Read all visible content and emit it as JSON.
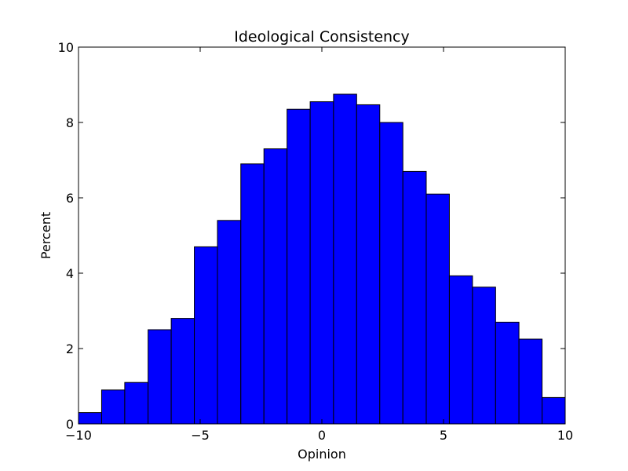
{
  "chart_data": {
    "type": "bar",
    "title": "Ideological Consistency",
    "xlabel": "Opinion",
    "ylabel": "Percent",
    "xlim": [
      -10,
      10
    ],
    "ylim": [
      0,
      10
    ],
    "x_ticks": [
      -10,
      -5,
      0,
      5,
      10
    ],
    "x_tick_labels": [
      "−10",
      "−5",
      "0",
      "5",
      "10"
    ],
    "y_ticks": [
      0,
      2,
      4,
      6,
      8,
      10
    ],
    "y_tick_labels": [
      "0",
      "2",
      "4",
      "6",
      "8",
      "10"
    ],
    "bin_edges": [
      -10,
      -9.05,
      -8.1,
      -7.14,
      -6.19,
      -5.24,
      -4.29,
      -3.33,
      -2.38,
      -1.43,
      -0.48,
      0.48,
      1.43,
      2.38,
      3.33,
      4.29,
      5.24,
      6.19,
      7.14,
      8.1,
      9.05,
      10
    ],
    "values": [
      0.3,
      0.9,
      1.1,
      2.5,
      2.8,
      4.7,
      5.4,
      6.9,
      7.3,
      8.35,
      8.55,
      8.75,
      8.47,
      8.0,
      6.7,
      6.1,
      3.93,
      3.63,
      2.7,
      2.25,
      0.7
    ],
    "bar_color": "#0000ff",
    "edge_color": "#000000",
    "grid": false,
    "legend": "none"
  }
}
